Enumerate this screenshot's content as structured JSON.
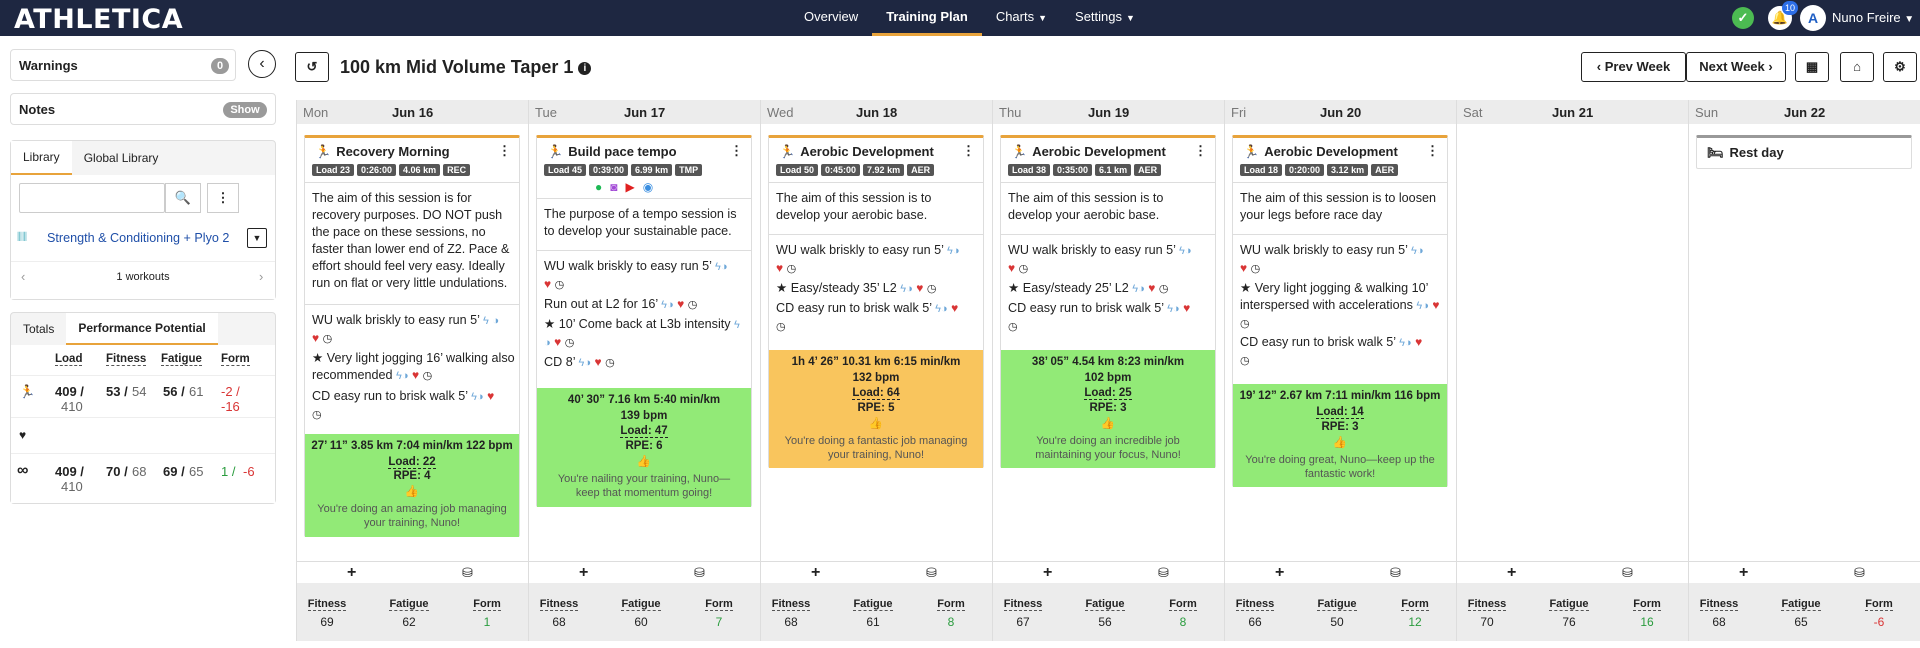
{
  "brand": "ATHLETICA",
  "nav": {
    "overview": "Overview",
    "plan": "Training Plan",
    "charts": "Charts",
    "settings": "Settings"
  },
  "user": {
    "name": "Nuno Freire",
    "notifications": "10"
  },
  "sidebar": {
    "warnings": "Warnings",
    "warnings_count": "0",
    "notes": "Notes",
    "notes_toggle": "Show",
    "tab_library": "Library",
    "tab_global": "Global Library",
    "search_placeholder": "",
    "library_item": "Strength & Conditioning + Plyo 2",
    "workouts": "1 workouts",
    "tab_totals": "Totals",
    "tab_perf": "Performance Potential",
    "headers": [
      "Load",
      "Fitness",
      "Fatigue",
      "Form"
    ],
    "rows": [
      {
        "load": "409 /",
        "load2": "410",
        "fit": "53 /",
        "fit2": "54",
        "fat": "56 /",
        "fat2": "61",
        "form": "-2 /",
        "form2": "-16"
      },
      {
        "load": "409 /",
        "load2": "410",
        "fit": "70 /",
        "fit2": "68",
        "fat": "69 /",
        "fat2": "65",
        "form": "1 /",
        "form2": "-6"
      }
    ]
  },
  "plan": {
    "title": "100 km Mid Volume Taper 1",
    "prev": "Prev Week",
    "next": "Next Week"
  },
  "days": [
    {
      "dw": "Mon",
      "dd": "Jun 16",
      "fitness": "69",
      "fatigue": "62",
      "form": "1"
    },
    {
      "dw": "Tue",
      "dd": "Jun 17",
      "fitness": "68",
      "fatigue": "60",
      "form": "7"
    },
    {
      "dw": "Wed",
      "dd": "Jun 18",
      "fitness": "68",
      "fatigue": "61",
      "form": "8"
    },
    {
      "dw": "Thu",
      "dd": "Jun 19",
      "fitness": "67",
      "fatigue": "56",
      "form": "8"
    },
    {
      "dw": "Fri",
      "dd": "Jun 20",
      "fitness": "66",
      "fatigue": "50",
      "form": "12"
    },
    {
      "dw": "Sat",
      "dd": "Jun 21",
      "fitness": "70",
      "fatigue": "76",
      "form": "16"
    },
    {
      "dw": "Sun",
      "dd": "Jun 22",
      "fitness": "68",
      "fatigue": "65",
      "form": "-6"
    }
  ],
  "stat_labels": {
    "fitness": "Fitness",
    "fatigue": "Fatigue",
    "form": "Form"
  },
  "cards": {
    "mon": {
      "title": "Recovery Morning",
      "chips": [
        "Load 23",
        "0:26:00",
        "4.06 km",
        "REC"
      ],
      "desc": "The aim of this session is for recovery purposes. DO NOT push the pace on these sessions, no faster than lower end of Z2. Pace & effort should feel very easy. Ideally run on flat or very little undulations.",
      "s1": "WU walk briskly to easy run 5’",
      "s2": "Very light jogging 16’ walking also recommended",
      "s3": "CD easy run to brisk walk 5’",
      "r1": "27’ 11”   3.85 km   7:04 min/km   122 bpm",
      "load": "Load: 22",
      "rpe": "RPE: 4",
      "msg": "You're doing an amazing job managing your training, Nuno!"
    },
    "tue": {
      "title": "Build pace tempo",
      "chips": [
        "Load 45",
        "0:39:00",
        "6.99 km",
        "TMP"
      ],
      "desc": "The purpose of a tempo session is to develop your sustainable pace.",
      "s1": "WU walk briskly to easy run 5’",
      "s2": "Run out at L2 for 16’",
      "s3": "10’ Come back at L3b intensity",
      "s4": "CD 8’",
      "r1": "40’ 30”   7.16 km   5:40 min/km",
      "r2": "139 bpm",
      "load": "Load: 47",
      "rpe": "RPE: 6",
      "msg": "You're nailing your training, Nuno—keep that momentum going!"
    },
    "wed": {
      "title": "Aerobic Development",
      "chips": [
        "Load 50",
        "0:45:00",
        "7.92 km",
        "AER"
      ],
      "desc": "The aim of this session is to develop your aerobic base.",
      "s1": "WU walk briskly to easy run 5’",
      "s2": "Easy/steady 35’ L2",
      "s3": "CD easy run to brisk walk 5’",
      "r1": "1h 4’ 26”   10.31 km   6:15 min/km",
      "r2": "132 bpm",
      "load": "Load: 64",
      "rpe": "RPE: 5",
      "msg": "You're doing a fantastic job managing your training, Nuno!"
    },
    "thu": {
      "title": "Aerobic Development",
      "chips": [
        "Load 38",
        "0:35:00",
        "6.1 km",
        "AER"
      ],
      "desc": "The aim of this session is to develop your aerobic base.",
      "s1": "WU walk briskly to easy run 5’",
      "s2": "Easy/steady 25’ L2",
      "s3": "CD easy run to brisk walk 5’",
      "r1": "38’ 05”   4.54 km   8:23 min/km",
      "r2": "102 bpm",
      "load": "Load: 25",
      "rpe": "RPE: 3",
      "msg": "You're doing an incredible job maintaining your focus, Nuno!"
    },
    "fri": {
      "title": "Aerobic Development",
      "chips": [
        "Load 18",
        "0:20:00",
        "3.12 km",
        "AER"
      ],
      "desc": "The aim of this session is to loosen your legs before race day",
      "s1": "WU walk briskly to easy run 5’",
      "s2": "Very light jogging & walking 10’ interspersed with accelerations",
      "s3": "CD easy run to brisk walk 5’",
      "r1": "19’ 12”   2.67 km   7:11 min/km   116 bpm",
      "load": "Load: 14",
      "rpe": "RPE: 3",
      "msg": "You're doing great, Nuno—keep up the fantastic work!"
    },
    "sun": {
      "title": "Rest day"
    }
  },
  "colors": {
    "accent": "#e8a33b",
    "green": "#92ea77",
    "orange": "#f9c55d",
    "navy": "#1e2741"
  }
}
